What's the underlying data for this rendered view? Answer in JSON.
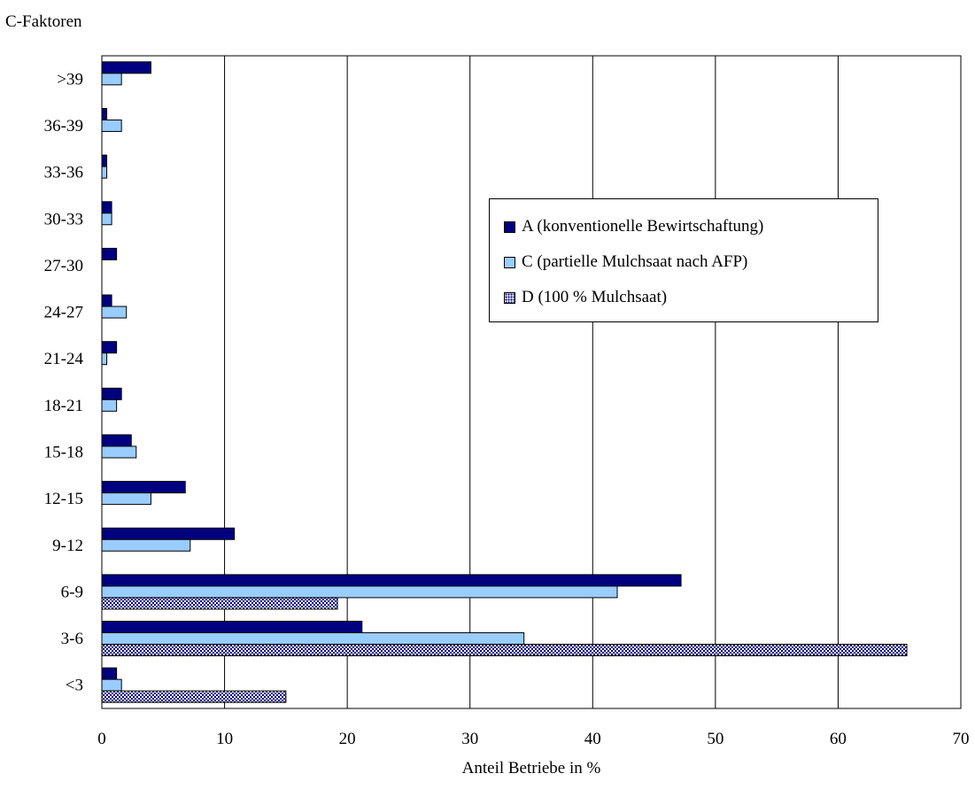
{
  "chart_data": {
    "type": "bar",
    "orientation": "horizontal",
    "title": "C-Faktoren",
    "xlabel": "Anteil Betriebe in %",
    "ylabel": "",
    "xlim": [
      0,
      70
    ],
    "x_ticks": [
      0,
      10,
      20,
      30,
      40,
      50,
      60,
      70
    ],
    "grid": "vertical",
    "legend_position": "upper-right",
    "categories": [
      ">39",
      "36-39",
      "33-36",
      "30-33",
      "27-30",
      "24-27",
      "21-24",
      "18-21",
      "15-18",
      "12-15",
      "9-12",
      "6-9",
      "3-6",
      "<3"
    ],
    "series": [
      {
        "name": "A (konventionelle Bewirtschaftung)",
        "color": "#000080",
        "pattern": "solid",
        "values": [
          4.0,
          0.4,
          0.4,
          0.8,
          1.2,
          0.8,
          1.2,
          1.6,
          2.4,
          6.8,
          10.8,
          47.2,
          21.2,
          1.2
        ]
      },
      {
        "name": "C (partielle Mulchsaat nach AFP)",
        "color": "#99ccff",
        "pattern": "solid",
        "values": [
          1.6,
          1.6,
          0.4,
          0.8,
          0,
          2.0,
          0.4,
          1.2,
          2.8,
          4.0,
          7.2,
          42.0,
          34.4,
          1.6
        ]
      },
      {
        "name": "D (100 % Mulchsaat)",
        "color": "#000080",
        "pattern": "dotted",
        "values": [
          0,
          0,
          0,
          0,
          0,
          0,
          0,
          0,
          0,
          0,
          0,
          19.2,
          65.6,
          15.0
        ]
      }
    ]
  }
}
